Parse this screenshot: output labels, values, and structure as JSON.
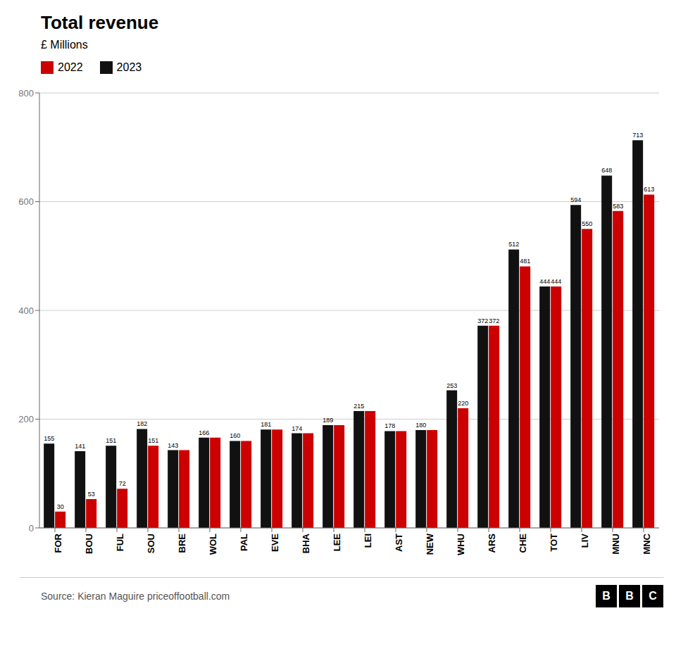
{
  "chart_data": {
    "type": "bar",
    "title": "Total revenue",
    "subtitle": "£ Millions",
    "annotations": [
      "Source: Kieran Maguire priceoffootball.com",
      "BBC"
    ],
    "categories": [
      "FOR",
      "BOU",
      "FUL",
      "SOU",
      "BRE",
      "WOL",
      "PAL",
      "EVE",
      "BHA",
      "LEE",
      "LEI",
      "AST",
      "NEW",
      "WHU",
      "ARS",
      "CHE",
      "TOT",
      "LIV",
      "MNU",
      "MNC"
    ],
    "series": [
      {
        "name": "2023",
        "color": "#111111",
        "values": [
          155,
          141,
          151,
          182,
          143,
          166,
          160,
          181,
          174,
          189,
          215,
          178,
          180,
          253,
          372,
          512,
          444,
          594,
          648,
          713
        ]
      },
      {
        "name": "2022",
        "color": "#cc0000",
        "values": [
          30,
          53,
          72,
          151,
          143,
          166,
          160,
          181,
          174,
          189,
          215,
          178,
          180,
          220,
          372,
          481,
          444,
          550,
          583,
          613
        ],
        "value_labels": [
          "30",
          "53",
          "72",
          "151",
          null,
          null,
          null,
          null,
          null,
          null,
          null,
          null,
          null,
          "220",
          "372",
          "481",
          "444",
          "550",
          "583",
          "613"
        ]
      }
    ],
    "ylim": [
      0,
      800
    ],
    "yticks": [
      0,
      200,
      400,
      600,
      800
    ],
    "grid": true,
    "data_labels": true,
    "legend": "top"
  }
}
